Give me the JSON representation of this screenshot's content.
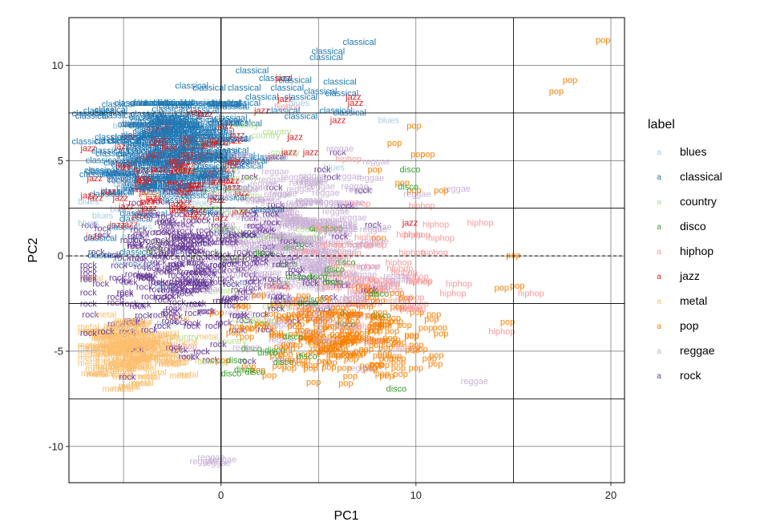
{
  "chart_data": {
    "type": "scatter",
    "title": "",
    "xlabel": "PC1",
    "ylabel": "PC2",
    "xlim": [
      -7.8,
      20.7
    ],
    "ylim": [
      -11.9,
      12.5
    ],
    "x_ticks": [
      0,
      10,
      20
    ],
    "y_ticks": [
      -10,
      -5,
      0,
      5,
      10
    ],
    "x_reference_lines": [
      0,
      15
    ],
    "y_reference_lines": [
      -7.5,
      -2.5,
      2.5,
      7.5
    ],
    "vertical_zero_line": 0,
    "horizontal_zero_line": {
      "y": 0,
      "style": "dashed"
    },
    "grid": true,
    "legend_position": "right",
    "legend_title": "label",
    "point_marker": "text label",
    "legend_key_glyph": "a",
    "series": [
      {
        "name": "blues",
        "color": "#a6cee3",
        "centroid": [
          -2,
          3
        ],
        "spread": [
          2.5,
          2.5
        ],
        "cloud_points": 40,
        "outliers": [
          [
            8.6,
            7.1
          ],
          [
            4.0,
            8.0
          ],
          [
            5.8,
            4.6
          ]
        ]
      },
      {
        "name": "classical",
        "color": "#1f78b4",
        "centroid": [
          -2.5,
          5.6
        ],
        "spread": [
          1.8,
          1.6
        ],
        "cloud_points": 240,
        "outliers": [
          [
            7.1,
            11.2
          ],
          [
            5.5,
            10.7
          ],
          [
            5.4,
            10.4
          ],
          [
            1.6,
            9.7
          ],
          [
            2.8,
            9.3
          ],
          [
            3.8,
            9.2
          ],
          [
            6.1,
            9.1
          ],
          [
            -1.5,
            8.9
          ],
          [
            -0.6,
            8.8
          ],
          [
            1.2,
            8.8
          ],
          [
            3.4,
            8.8
          ],
          [
            5.1,
            8.6
          ],
          [
            4.1,
            8.3
          ],
          [
            6.2,
            8.5
          ],
          [
            2.1,
            8.3
          ],
          [
            -1.2,
            7.9
          ],
          [
            0.6,
            7.8
          ],
          [
            3.2,
            7.6
          ],
          [
            5.9,
            7.6
          ],
          [
            6.6,
            7.5
          ],
          [
            4.1,
            7.3
          ],
          [
            -4.8,
            6.2
          ],
          [
            -5.8,
            5.5
          ],
          [
            -6.1,
            4.4
          ],
          [
            -5.3,
            3.3
          ],
          [
            -6.2,
            0.9
          ],
          [
            -6.0,
            0.0
          ],
          [
            -5.0,
            1.5
          ]
        ]
      },
      {
        "name": "country",
        "color": "#b2df8a",
        "centroid": [
          0.5,
          1.0
        ],
        "spread": [
          2.5,
          2.5
        ],
        "cloud_points": 30,
        "outliers": [
          [
            2.3,
            6.3
          ],
          [
            3.3,
            5.4
          ]
        ]
      },
      {
        "name": "disco",
        "color": "#33a02c",
        "centroid": [
          4.5,
          -2.5
        ],
        "spread": [
          2.0,
          2.0
        ],
        "cloud_points": 25,
        "outliers": [
          [
            9.7,
            4.5
          ],
          [
            9.6,
            3.6
          ],
          [
            1.2,
            -6.0
          ],
          [
            0.8,
            -5.5
          ],
          [
            3.2,
            -5.6
          ],
          [
            4.4,
            -5.3
          ],
          [
            2.4,
            -5.1
          ]
        ]
      },
      {
        "name": "hiphop",
        "color": "#fb9a99",
        "centroid": [
          7.5,
          -1.5
        ],
        "spread": [
          2.2,
          2.0
        ],
        "cloud_points": 60,
        "outliers": [
          [
            13.3,
            1.7
          ],
          [
            10.3,
            2.6
          ],
          [
            11.3,
            0.9
          ],
          [
            12.2,
            -1.5
          ],
          [
            11.9,
            -2.0
          ],
          [
            15.9,
            -2.0
          ],
          [
            14.4,
            -4.0
          ],
          [
            3.4,
            7.8
          ],
          [
            -1.9,
            -4.8
          ]
        ]
      },
      {
        "name": "jazz",
        "color": "#e31a1c",
        "centroid": [
          -2,
          4.3
        ],
        "spread": [
          2.0,
          1.3
        ],
        "cloud_points": 120,
        "outliers": [
          [
            3.2,
            9.3
          ],
          [
            6.8,
            8.3
          ],
          [
            6.9,
            8.0
          ],
          [
            3.3,
            8.2
          ],
          [
            2.1,
            7.6
          ],
          [
            6.0,
            7.1
          ],
          [
            3.8,
            6.2
          ],
          [
            3.5,
            5.4
          ],
          [
            4.6,
            5.4
          ],
          [
            9.7,
            1.7
          ]
        ]
      },
      {
        "name": "metal",
        "color": "#fdbf6f",
        "centroid": [
          -4.8,
          -4.9
        ],
        "spread": [
          1.3,
          0.8
        ],
        "cloud_points": 180,
        "outliers": [
          [
            -3.7,
            3.2
          ],
          [
            -6.6,
            -1.2
          ],
          [
            -6.0,
            -6.2
          ],
          [
            -5.0,
            -6.4
          ],
          [
            -4.2,
            -6.7
          ],
          [
            -4.7,
            -6.9
          ],
          [
            -2.1,
            -6.3
          ],
          [
            -2.2,
            -5.6
          ],
          [
            -0.8,
            -5.5
          ]
        ]
      },
      {
        "name": "pop",
        "color": "#ff7f00",
        "centroid": [
          5.8,
          -4.2
        ],
        "spread": [
          2.3,
          1.1
        ],
        "cloud_points": 200,
        "outliers": [
          [
            19.6,
            11.3
          ],
          [
            17.9,
            9.2
          ],
          [
            17.2,
            8.6
          ],
          [
            9.9,
            6.8
          ],
          [
            8.9,
            5.9
          ],
          [
            10.1,
            5.3
          ],
          [
            10.6,
            5.3
          ],
          [
            7.9,
            4.5
          ],
          [
            9.3,
            3.8
          ],
          [
            11.3,
            3.4
          ],
          [
            9.9,
            3.4
          ],
          [
            8.1,
            0.9
          ],
          [
            15.0,
            0.0
          ],
          [
            14.4,
            -1.7
          ],
          [
            15.2,
            -1.6
          ],
          [
            14.7,
            -3.5
          ],
          [
            10.7,
            -5.4
          ],
          [
            11.0,
            -5.7
          ],
          [
            6.4,
            -6.7
          ],
          [
            9.1,
            -5.9
          ],
          [
            10.0,
            -5.9
          ],
          [
            3.5,
            -5.9
          ],
          [
            4.6,
            -5.9
          ]
        ]
      },
      {
        "name": "reggae",
        "color": "#cab2d6",
        "centroid": [
          4.3,
          0.8
        ],
        "spread": [
          2.2,
          2.0
        ],
        "cloud_points": 180,
        "outliers": [
          [
            6.1,
            5.6
          ],
          [
            12.1,
            3.5
          ],
          [
            13.0,
            -6.6
          ],
          [
            7.2,
            -5.9
          ],
          [
            -0.5,
            -10.6
          ],
          [
            -0.2,
            -10.9
          ],
          [
            0.1,
            -10.7
          ],
          [
            -0.9,
            -10.8
          ]
        ]
      },
      {
        "name": "rock",
        "color": "#6a3d9a",
        "centroid": [
          -1.5,
          -0.8
        ],
        "spread": [
          2.6,
          1.9
        ],
        "cloud_points": 300,
        "outliers": [
          [
            6.0,
            5.4
          ],
          [
            5.2,
            4.5
          ],
          [
            5.7,
            4.1
          ],
          [
            7.3,
            3.4
          ],
          [
            6.4,
            2.6
          ],
          [
            7.8,
            1.6
          ],
          [
            6.1,
            1.0
          ],
          [
            4.3,
            0.6
          ],
          [
            7.6,
            -1.8
          ],
          [
            -4.3,
            -3.5
          ],
          [
            -5.4,
            -3.6
          ],
          [
            -3.0,
            -3.7
          ],
          [
            -1.5,
            -3.7
          ],
          [
            -5.9,
            -4.0
          ],
          [
            -4.8,
            -4.0
          ]
        ]
      }
    ]
  }
}
